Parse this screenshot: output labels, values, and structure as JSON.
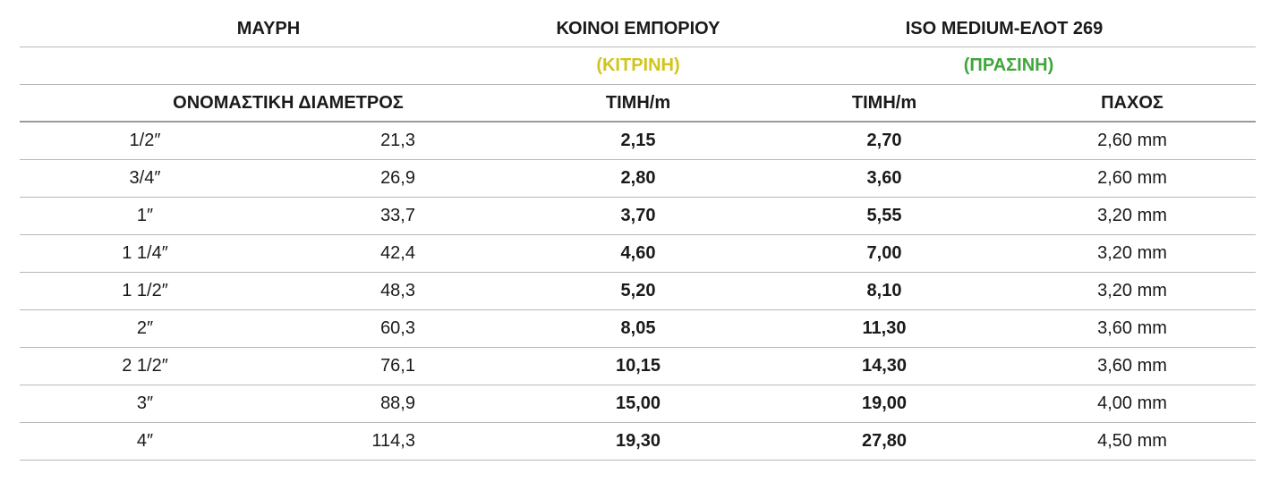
{
  "header": {
    "mavri": "ΜΑΥΡΗ",
    "koinoi": "ΚΟΙΝΟΙ ΕΜΠΟΡΙΟΥ",
    "iso": "ISO MEDIUM-ΕΛΟΤ 269",
    "yellow_label": "(ΚΙΤΡΙΝΗ)",
    "green_label": "(ΠΡΑΣΙΝΗ)",
    "nominal_diameter": "ΟΝΟΜΑΣΤΙΚΗ ΔΙΑΜΕΤΡΟΣ",
    "price_per_m_1": "ΤΙΜΗ/m",
    "price_per_m_2": "ΤΙΜΗ/m",
    "thickness": "ΠΑΧΟΣ"
  },
  "colors": {
    "yellow": "#d2c41a",
    "green": "#3fa63a"
  },
  "rows": [
    {
      "inch": "1/2″",
      "mm": "21,3",
      "price_common": "2,15",
      "price_iso": "2,70",
      "thickness": "2,60 mm"
    },
    {
      "inch": "3/4″",
      "mm": "26,9",
      "price_common": "2,80",
      "price_iso": "3,60",
      "thickness": "2,60 mm"
    },
    {
      "inch": "1″",
      "mm": "33,7",
      "price_common": "3,70",
      "price_iso": "5,55",
      "thickness": "3,20 mm"
    },
    {
      "inch": "1 1/4″",
      "mm": "42,4",
      "price_common": "4,60",
      "price_iso": "7,00",
      "thickness": "3,20 mm"
    },
    {
      "inch": "1 1/2″",
      "mm": "48,3",
      "price_common": "5,20",
      "price_iso": "8,10",
      "thickness": "3,20 mm"
    },
    {
      "inch": "2″",
      "mm": "60,3",
      "price_common": "8,05",
      "price_iso": "11,30",
      "thickness": "3,60 mm"
    },
    {
      "inch": "2 1/2″",
      "mm": "76,1",
      "price_common": "10,15",
      "price_iso": "14,30",
      "thickness": "3,60 mm"
    },
    {
      "inch": "3″",
      "mm": "88,9",
      "price_common": "15,00",
      "price_iso": "19,00",
      "thickness": "4,00 mm"
    },
    {
      "inch": "4″",
      "mm": "114,3",
      "price_common": "19,30",
      "price_iso": "27,80",
      "thickness": "4,50 mm"
    }
  ]
}
